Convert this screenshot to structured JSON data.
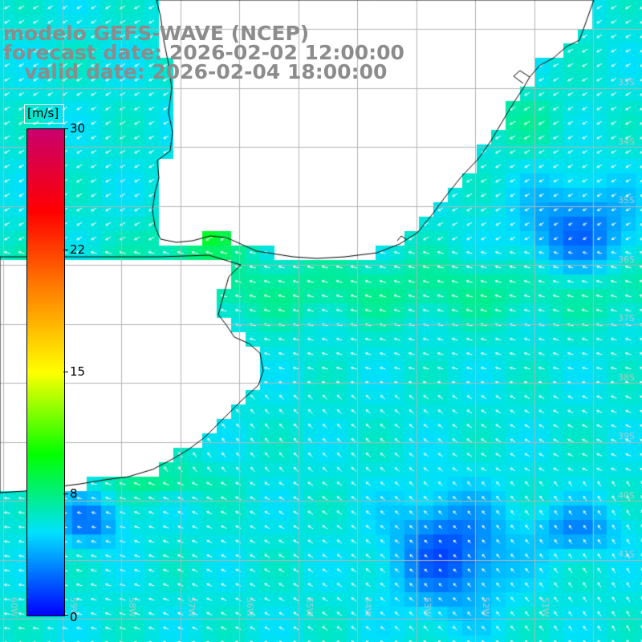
{
  "header": {
    "line1": "modelo GEFS-WAVE (NCEP)",
    "line2": "forecast date: 2026-02-02 12:00:00",
    "line3": "   valid date: 2026-02-04 18:00:00"
  },
  "colorbar": {
    "unit": "[m/s]",
    "ticks": [
      "30",
      "22",
      "15",
      "8",
      "0"
    ],
    "tick_values": [
      30,
      22,
      15,
      8,
      0
    ],
    "min": 0,
    "max": 30,
    "stops": [
      "#0000ff",
      "#00e0ff",
      "#00ff00",
      "#ffff00",
      "#ff8000",
      "#ff0000",
      "#c8006e"
    ]
  },
  "map": {
    "land_color": "#ffffff",
    "grid_color": "#b4b4b4",
    "coast_color": "#000000",
    "arrow_color": "#ffffff",
    "lat_labels": [
      "33S",
      "34S",
      "35S",
      "36S",
      "37S",
      "38S",
      "39S",
      "40S",
      "41S"
    ],
    "lon_labels": [
      "60W",
      "59W",
      "58W",
      "57W",
      "56W",
      "55W",
      "54W",
      "53W",
      "52W",
      "51W"
    ]
  }
}
